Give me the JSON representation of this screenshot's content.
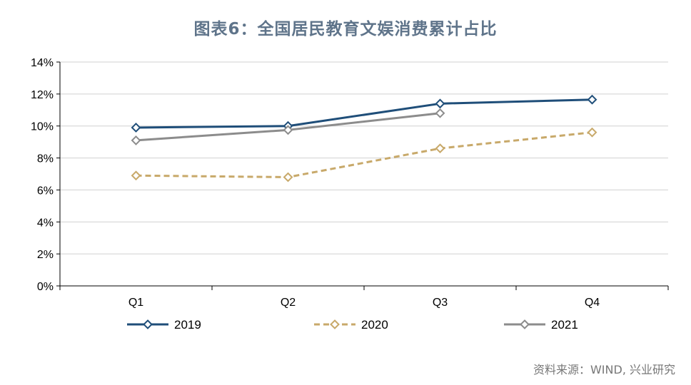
{
  "page": {
    "title": "图表6：全国居民教育文娱消费累计占比",
    "source": "资料来源：WIND, 兴业研究"
  },
  "chart_data": {
    "type": "line",
    "title": "图表6：全国居民教育文娱消费累计占比",
    "categories": [
      "Q1",
      "Q2",
      "Q3",
      "Q4"
    ],
    "y_ticks": [
      "0%",
      "2%",
      "4%",
      "6%",
      "8%",
      "10%",
      "12%",
      "14%"
    ],
    "ylim": [
      0,
      14
    ],
    "grid": true,
    "legend_position": "bottom",
    "series": [
      {
        "name": "2019",
        "values": [
          9.9,
          10.0,
          11.4,
          11.65
        ],
        "color": "#1f4e79",
        "dashed": false
      },
      {
        "name": "2020",
        "values": [
          6.9,
          6.8,
          8.6,
          9.6
        ],
        "color": "#c8a96a",
        "dashed": true
      },
      {
        "name": "2021",
        "values": [
          9.1,
          9.75,
          10.8,
          null
        ],
        "color": "#8c8c8c",
        "dashed": false
      }
    ]
  }
}
